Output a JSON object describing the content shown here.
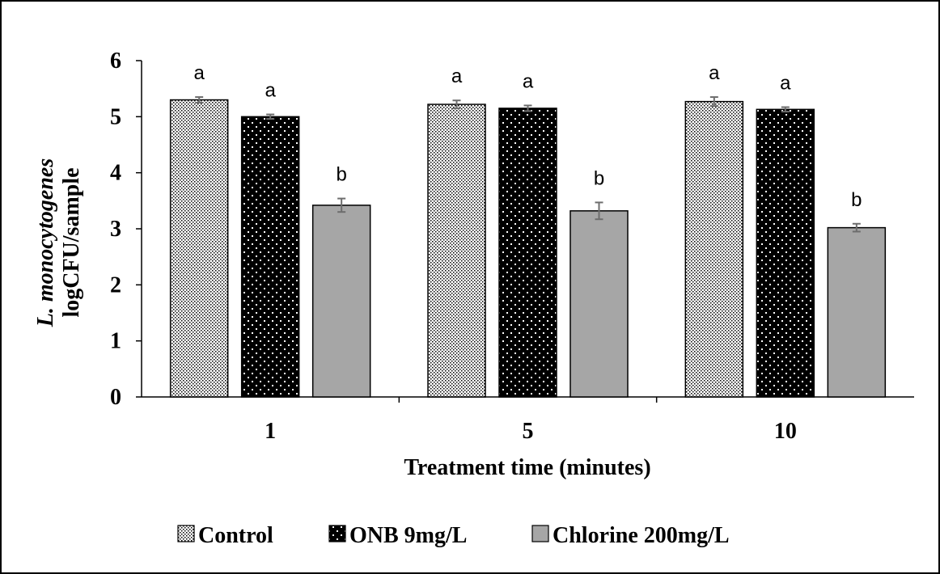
{
  "chart_data": {
    "type": "bar",
    "title": "",
    "xlabel": "Treatment time (minutes)",
    "ylabel_italic": "L. monocytogenes",
    "ylabel": "logCFU/sample",
    "ylim": [
      0,
      6
    ],
    "yticks": [
      "0",
      "1",
      "2",
      "3",
      "4",
      "5",
      "6"
    ],
    "categories": [
      "1",
      "5",
      "10"
    ],
    "grid": false,
    "legend_position": "bottom",
    "series": [
      {
        "name": "Control",
        "pattern": "dense-dots",
        "color": "#ffffff",
        "values": [
          5.3,
          5.22,
          5.27
        ],
        "errors": [
          0.05,
          0.07,
          0.08
        ],
        "letters": [
          "a",
          "a",
          "a"
        ]
      },
      {
        "name": "ONB 9mg/L",
        "pattern": "white-dots-on-black",
        "color": "#000000",
        "values": [
          5.0,
          5.15,
          5.13
        ],
        "errors": [
          0.04,
          0.05,
          0.04
        ],
        "letters": [
          "a",
          "a",
          "a"
        ]
      },
      {
        "name": "Chlorine 200mg/L",
        "pattern": "solid",
        "color": "#a6a6a6",
        "values": [
          3.42,
          3.32,
          3.02
        ],
        "errors": [
          0.12,
          0.15,
          0.07
        ],
        "letters": [
          "b",
          "b",
          "b"
        ]
      }
    ]
  }
}
